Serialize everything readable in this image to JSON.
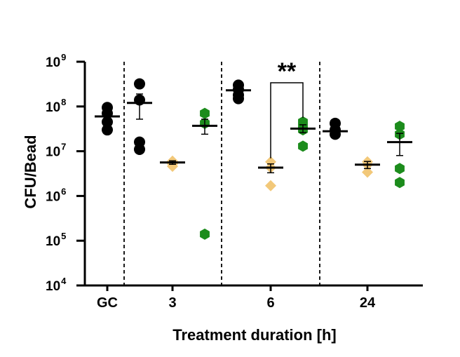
{
  "chart_data": {
    "type": "scatter",
    "ylabel": "CFU/Bead",
    "xlabel": "Treatment duration [h]",
    "y_scale": "log10",
    "ylim": [
      10000,
      1000000000
    ],
    "y_ticks": [
      {
        "base": "10",
        "exp": "4",
        "value": 10000
      },
      {
        "base": "10",
        "exp": "5",
        "value": 100000
      },
      {
        "base": "10",
        "exp": "6",
        "value": 1000000
      },
      {
        "base": "10",
        "exp": "7",
        "value": 10000000
      },
      {
        "base": "10",
        "exp": "8",
        "value": 100000000
      },
      {
        "base": "10",
        "exp": "9",
        "value": 1000000000
      }
    ],
    "categories": [
      "GC",
      "3",
      "6",
      "24"
    ],
    "colors": {
      "black": "#000000",
      "orange": "#F2C879",
      "green": "#1C8C1C"
    },
    "groups": [
      {
        "category": "GC",
        "color": "#000000",
        "marker": "circle",
        "points": [
          95000000,
          70000000,
          45000000,
          30000000
        ],
        "mean": 60000000,
        "sem": [
          60000000,
          60000000
        ]
      },
      {
        "category": "3",
        "color": "#000000",
        "marker": "circle",
        "points": [
          320000000,
          140000000,
          16000000,
          11000000
        ],
        "mean": 120000000,
        "sem": [
          52000000,
          190000000
        ]
      },
      {
        "category": "3",
        "color": "#F2C879",
        "marker": "diamond",
        "points": [
          6000000,
          5200000,
          4600000
        ],
        "mean": 5600000,
        "sem": [
          5100000,
          6100000
        ]
      },
      {
        "category": "3",
        "color": "#1C8C1C",
        "marker": "hexagon",
        "points": [
          70000000,
          42000000,
          140000
        ],
        "mean": 37000000,
        "sem": [
          24000000,
          52000000
        ]
      },
      {
        "category": "6",
        "color": "#000000",
        "marker": "circle",
        "points": [
          300000000,
          240000000,
          180000000,
          150000000
        ],
        "mean": 230000000,
        "sem": [
          190000000,
          270000000
        ]
      },
      {
        "category": "6",
        "color": "#F2C879",
        "marker": "diamond",
        "points": [
          5800000,
          4300000,
          1700000
        ],
        "mean": 4300000,
        "sem": [
          3300000,
          5200000
        ]
      },
      {
        "category": "6",
        "color": "#1C8C1C",
        "marker": "hexagon",
        "points": [
          45000000,
          35000000,
          30000000,
          13000000
        ],
        "mean": 32000000,
        "sem": [
          26000000,
          39000000
        ]
      },
      {
        "category": "24",
        "color": "#000000",
        "marker": "circle",
        "points": [
          42000000,
          30000000,
          24000000
        ],
        "mean": 28000000,
        "sem": [
          24000000,
          33000000
        ]
      },
      {
        "category": "24",
        "color": "#F2C879",
        "marker": "diamond",
        "points": [
          5800000,
          5000000,
          3400000
        ],
        "mean": 5000000,
        "sem": [
          4100000,
          5900000
        ]
      },
      {
        "category": "24",
        "color": "#1C8C1C",
        "marker": "hexagon",
        "points": [
          36000000,
          24000000,
          4100000,
          2000000
        ],
        "mean": 16000000,
        "sem": [
          8000000,
          25000000
        ]
      }
    ],
    "significance": {
      "label": "**",
      "from_category": "6",
      "from_group": "orange",
      "to_category": "6",
      "to_group": "green"
    }
  }
}
